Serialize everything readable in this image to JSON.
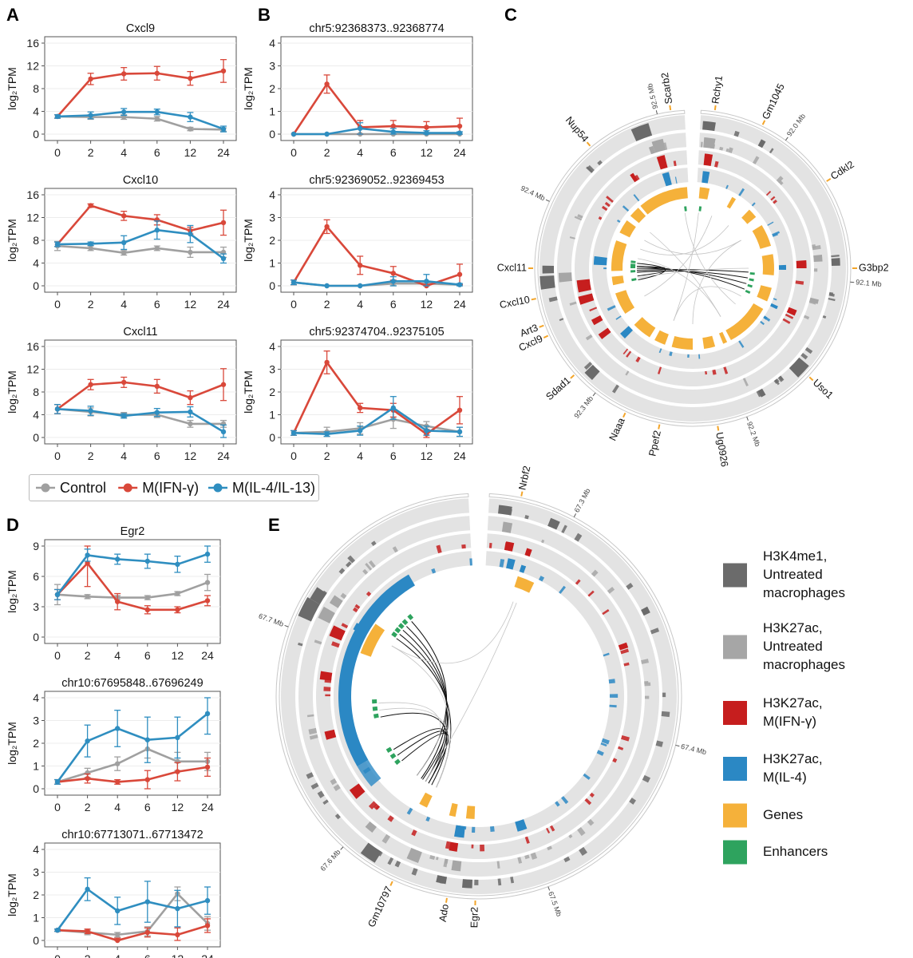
{
  "panel_letters": {
    "a": "A",
    "b": "B",
    "c": "C",
    "d": "D",
    "e": "E"
  },
  "colors": {
    "control": "#a0a0a0",
    "ifng": "#d9483a",
    "il4": "#2f8ec0",
    "k4me1": "#6b6b6b",
    "k27ac_untreated": "#a6a6a6",
    "k27ac_ifng": "#c61e1e",
    "k27ac_il4": "#2b88c4",
    "genes": "#f5b13a",
    "enhancers": "#2ea35e"
  },
  "series_legend": [
    {
      "name": "Control",
      "key": "control"
    },
    {
      "name": "M(IFN-γ)",
      "key": "ifng"
    },
    {
      "name": "M(IL-4/IL-13)",
      "key": "il4"
    }
  ],
  "chart_data": [
    {
      "type": "line",
      "panel": "A",
      "title": "Cxcl9",
      "xlabel": "",
      "ylabel": "log₂TPM",
      "x": [
        "0",
        "2",
        "4",
        "6",
        "12",
        "24"
      ],
      "ylim": [
        0,
        16
      ],
      "yticks": [
        0,
        4,
        8,
        12,
        16
      ],
      "series": [
        {
          "name": "Control",
          "key": "control",
          "values": [
            3.1,
            3.0,
            3.0,
            2.7,
            0.9,
            0.8
          ],
          "err": [
            0.3,
            0.4,
            0.4,
            0.4,
            0.3,
            0.3
          ]
        },
        {
          "name": "M(IFN-γ)",
          "key": "ifng",
          "values": [
            3.1,
            9.7,
            10.6,
            10.7,
            9.8,
            11.1
          ],
          "err": [
            0.3,
            1.0,
            1.1,
            1.2,
            1.2,
            2.0
          ]
        },
        {
          "name": "M(IL-4/IL-13)",
          "key": "il4",
          "values": [
            3.1,
            3.3,
            3.9,
            3.9,
            3.0,
            0.9
          ],
          "err": [
            0.3,
            0.6,
            0.6,
            0.5,
            0.8,
            0.5
          ]
        }
      ]
    },
    {
      "type": "line",
      "panel": "A",
      "title": "Cxcl10",
      "xlabel": "",
      "ylabel": "log₂TPM",
      "x": [
        "0",
        "2",
        "4",
        "6",
        "12",
        "24"
      ],
      "ylim": [
        0,
        16
      ],
      "yticks": [
        0,
        4,
        8,
        12,
        16
      ],
      "series": [
        {
          "name": "Control",
          "key": "control",
          "values": [
            7.0,
            6.6,
            5.8,
            6.6,
            5.9,
            5.9
          ],
          "err": [
            0.8,
            0.4,
            0.4,
            0.4,
            0.9,
            0.9
          ]
        },
        {
          "name": "M(IFN-γ)",
          "key": "ifng",
          "values": [
            7.3,
            14.1,
            12.3,
            11.6,
            9.7,
            11.1
          ],
          "err": [
            0.4,
            0.3,
            0.8,
            0.9,
            0.6,
            2.2
          ]
        },
        {
          "name": "M(IL-4/IL-13)",
          "key": "il4",
          "values": [
            7.3,
            7.4,
            7.6,
            9.8,
            9.1,
            4.8
          ],
          "err": [
            0.4,
            0.3,
            1.2,
            1.6,
            1.5,
            0.8
          ]
        }
      ]
    },
    {
      "type": "line",
      "panel": "A",
      "title": "Cxcl11",
      "xlabel": "",
      "ylabel": "log₂TPM",
      "x": [
        "0",
        "2",
        "4",
        "6",
        "12",
        "24"
      ],
      "ylim": [
        0,
        16
      ],
      "yticks": [
        0,
        4,
        8,
        12,
        16
      ],
      "series": [
        {
          "name": "Control",
          "key": "control",
          "values": [
            5.0,
            4.5,
            4.0,
            4.0,
            2.4,
            2.4
          ],
          "err": [
            0.8,
            0.7,
            0.4,
            0.5,
            0.6,
            0.6
          ]
        },
        {
          "name": "M(IFN-γ)",
          "key": "ifng",
          "values": [
            5.0,
            9.3,
            9.7,
            9.0,
            7.0,
            9.3
          ],
          "err": [
            0.8,
            0.9,
            0.9,
            1.2,
            1.2,
            2.8
          ]
        },
        {
          "name": "M(IL-4/IL-13)",
          "key": "il4",
          "values": [
            5.0,
            4.7,
            3.8,
            4.4,
            4.5,
            1.0
          ],
          "err": [
            0.8,
            0.8,
            0.4,
            0.7,
            0.9,
            1.2
          ]
        }
      ]
    },
    {
      "type": "line",
      "panel": "B",
      "title": "chr5:92368373..92368774",
      "xlabel": "",
      "ylabel": "log₂TPM",
      "x": [
        "0",
        "2",
        "4",
        "6",
        "12",
        "24"
      ],
      "ylim": [
        0,
        4
      ],
      "yticks": [
        0,
        1,
        2,
        3,
        4
      ],
      "series": [
        {
          "name": "Control",
          "key": "control",
          "values": [
            0.0,
            0.0,
            0.0,
            0.0,
            0.0,
            0.0
          ],
          "err": [
            0,
            0,
            0,
            0,
            0,
            0
          ]
        },
        {
          "name": "M(IFN-γ)",
          "key": "ifng",
          "values": [
            0.0,
            2.2,
            0.3,
            0.35,
            0.3,
            0.35
          ],
          "err": [
            0,
            0.4,
            0.3,
            0.25,
            0.25,
            0.35
          ]
        },
        {
          "name": "M(IL-4/IL-13)",
          "key": "il4",
          "values": [
            0.0,
            0.0,
            0.25,
            0.1,
            0.05,
            0.05
          ],
          "err": [
            0,
            0,
            0.25,
            0.15,
            0.1,
            0.05
          ]
        }
      ]
    },
    {
      "type": "line",
      "panel": "B",
      "title": "chr5:92369052..92369453",
      "xlabel": "",
      "ylabel": "log₂TPM",
      "x": [
        "0",
        "2",
        "4",
        "6",
        "12",
        "24"
      ],
      "ylim": [
        0,
        4
      ],
      "yticks": [
        0,
        1,
        2,
        3,
        4
      ],
      "series": [
        {
          "name": "Control",
          "key": "control",
          "values": [
            0.15,
            0.0,
            0.0,
            0.1,
            0.1,
            0.05
          ],
          "err": [
            0.1,
            0,
            0,
            0.1,
            0.1,
            0.05
          ]
        },
        {
          "name": "M(IFN-γ)",
          "key": "ifng",
          "values": [
            0.15,
            2.6,
            0.9,
            0.55,
            0.0,
            0.5
          ],
          "err": [
            0.1,
            0.3,
            0.4,
            0.3,
            0.05,
            0.45
          ]
        },
        {
          "name": "M(IL-4/IL-13)",
          "key": "il4",
          "values": [
            0.15,
            0.0,
            0.0,
            0.2,
            0.2,
            0.05
          ],
          "err": [
            0.1,
            0,
            0,
            0.2,
            0.3,
            0.05
          ]
        }
      ]
    },
    {
      "type": "line",
      "panel": "B",
      "title": "chr5:92374704..92375105",
      "xlabel": "",
      "ylabel": "log₂TPM",
      "x": [
        "0",
        "2",
        "4",
        "6",
        "12",
        "24"
      ],
      "ylim": [
        0,
        4
      ],
      "yticks": [
        0,
        1,
        2,
        3,
        4
      ],
      "series": [
        {
          "name": "Control",
          "key": "control",
          "values": [
            0.2,
            0.25,
            0.4,
            0.8,
            0.5,
            0.25
          ],
          "err": [
            0.1,
            0.2,
            0.25,
            0.4,
            0.2,
            0.2
          ]
        },
        {
          "name": "M(IFN-γ)",
          "key": "ifng",
          "values": [
            0.2,
            3.3,
            1.3,
            1.2,
            0.15,
            1.2
          ],
          "err": [
            0.1,
            0.5,
            0.2,
            0.3,
            0.2,
            0.6
          ]
        },
        {
          "name": "M(IL-4/IL-13)",
          "key": "il4",
          "values": [
            0.2,
            0.15,
            0.3,
            1.3,
            0.3,
            0.25
          ],
          "err": [
            0.1,
            0.1,
            0.2,
            0.5,
            0.2,
            0.2
          ]
        }
      ]
    },
    {
      "type": "line",
      "panel": "D",
      "title": "Egr2",
      "xlabel": "",
      "ylabel": "log₂TPM",
      "x": [
        "0",
        "2",
        "4",
        "6",
        "12",
        "24"
      ],
      "ylim": [
        0,
        9
      ],
      "yticks": [
        0,
        3,
        6,
        9
      ],
      "series": [
        {
          "name": "Control",
          "key": "control",
          "values": [
            4.2,
            4.0,
            3.9,
            3.9,
            4.3,
            5.4
          ],
          "err": [
            1.0,
            0.2,
            0.2,
            0.2,
            0.2,
            0.8
          ]
        },
        {
          "name": "M(IFN-γ)",
          "key": "ifng",
          "values": [
            4.2,
            7.3,
            3.5,
            2.7,
            2.7,
            3.6
          ],
          "err": [
            0.5,
            2.3,
            0.8,
            0.4,
            0.3,
            0.5
          ]
        },
        {
          "name": "M(IL-4/IL-13)",
          "key": "il4",
          "values": [
            4.2,
            8.1,
            7.7,
            7.5,
            7.2,
            8.2
          ],
          "err": [
            0.5,
            0.6,
            0.5,
            0.7,
            0.8,
            0.8
          ]
        }
      ]
    },
    {
      "type": "line",
      "panel": "D",
      "title": "chr10:67695848..67696249",
      "xlabel": "",
      "ylabel": "log₂TPM",
      "x": [
        "0",
        "2",
        "4",
        "6",
        "12",
        "24"
      ],
      "ylim": [
        0,
        4
      ],
      "yticks": [
        0,
        1,
        2,
        3,
        4
      ],
      "series": [
        {
          "name": "Control",
          "key": "control",
          "values": [
            0.3,
            0.7,
            1.1,
            1.75,
            1.2,
            1.2
          ],
          "err": [
            0.1,
            0.2,
            0.3,
            0.4,
            0.4,
            0.4
          ]
        },
        {
          "name": "M(IFN-γ)",
          "key": "ifng",
          "values": [
            0.3,
            0.45,
            0.3,
            0.4,
            0.75,
            0.95
          ],
          "err": [
            0.1,
            0.2,
            0.1,
            0.4,
            0.4,
            0.4
          ]
        },
        {
          "name": "M(IL-4/IL-13)",
          "key": "il4",
          "values": [
            0.3,
            2.1,
            2.65,
            2.15,
            2.25,
            3.3
          ],
          "err": [
            0.1,
            0.7,
            0.8,
            1.0,
            0.9,
            0.9
          ]
        }
      ]
    },
    {
      "type": "line",
      "panel": "D",
      "title": "chr10:67713071..67713472",
      "xlabel": "",
      "ylabel": "log₂TPM",
      "x": [
        "0",
        "2",
        "4",
        "6",
        "12",
        "24"
      ],
      "ylim": [
        0,
        4
      ],
      "yticks": [
        0,
        1,
        2,
        3,
        4
      ],
      "series": [
        {
          "name": "Control",
          "key": "control",
          "values": [
            0.45,
            0.35,
            0.25,
            0.4,
            2.05,
            0.75
          ],
          "err": [
            0.05,
            0.1,
            0.1,
            0.2,
            0.3,
            0.3
          ]
        },
        {
          "name": "M(IFN-γ)",
          "key": "ifng",
          "values": [
            0.45,
            0.4,
            0.0,
            0.35,
            0.25,
            0.65
          ],
          "err": [
            0.05,
            0.1,
            0.1,
            0.2,
            0.3,
            0.3
          ]
        },
        {
          "name": "M(IL-4/IL-13)",
          "key": "il4",
          "values": [
            0.45,
            2.25,
            1.3,
            1.7,
            1.4,
            1.75
          ],
          "err": [
            0.05,
            0.5,
            0.6,
            0.9,
            0.8,
            0.6
          ]
        }
      ]
    }
  ],
  "circos_c": {
    "genes": [
      {
        "label": "Scarb2",
        "angle": -8
      },
      {
        "label": "Rchy1",
        "angle": 8
      },
      {
        "label": "Gm1045",
        "angle": 26
      },
      {
        "label": "Cdkl2",
        "angle": 57
      },
      {
        "label": "G3bp2",
        "angle": 90
      },
      {
        "label": "Uso1",
        "angle": 133
      },
      {
        "label": "Ug0926",
        "angle": 171
      },
      {
        "label": "Ppef2",
        "angle": 192
      },
      {
        "label": "Naaa",
        "angle": 205
      },
      {
        "label": "Sdad1",
        "angle": 228
      },
      {
        "label": "Cxcl9",
        "angle": 245
      },
      {
        "label": "Art3",
        "angle": 249
      },
      {
        "label": "Cxcl10",
        "angle": 259
      },
      {
        "label": "Cxcl11",
        "angle": 270
      },
      {
        "label": "Nup54",
        "angle": 320
      }
    ],
    "ticks": [
      {
        "label": "92.5 Mb",
        "angle": -13
      },
      {
        "label": "92.0 Mb",
        "angle": 36
      },
      {
        "label": "92.1 Mb",
        "angle": 95
      },
      {
        "label": "92.2 Mb",
        "angle": 160
      },
      {
        "label": "92.3 Mb",
        "angle": 218
      },
      {
        "label": "92.4 Mb",
        "angle": 295
      }
    ]
  },
  "circos_e": {
    "genes": [
      {
        "label": "Nrbf2",
        "angle": 12
      },
      {
        "label": "Egr2",
        "angle": 181
      },
      {
        "label": "Ado",
        "angle": 189
      },
      {
        "label": "Gm10797",
        "angle": 205
      }
    ],
    "ticks": [
      {
        "label": "67.3 Mb",
        "angle": 28
      },
      {
        "label": "67.4 Mb",
        "angle": 104
      },
      {
        "label": "67.5 Mb",
        "angle": 160
      },
      {
        "label": "67.6 Mb",
        "angle": 222
      },
      {
        "label": "67.7 Mb",
        "angle": 290
      }
    ]
  },
  "track_legend": [
    {
      "label": "H3K4me1,\nUntreated\nmacrophages",
      "key": "k4me1"
    },
    {
      "label": "H3K27ac,\nUntreated\nmacrophages",
      "key": "k27ac_untreated"
    },
    {
      "label": "H3K27ac,\nM(IFN-γ)",
      "key": "k27ac_ifng"
    },
    {
      "label": "H3K27ac,\nM(IL-4)",
      "key": "k27ac_il4"
    },
    {
      "label": "Genes",
      "key": "genes"
    },
    {
      "label": "Enhancers",
      "key": "enhancers"
    }
  ]
}
